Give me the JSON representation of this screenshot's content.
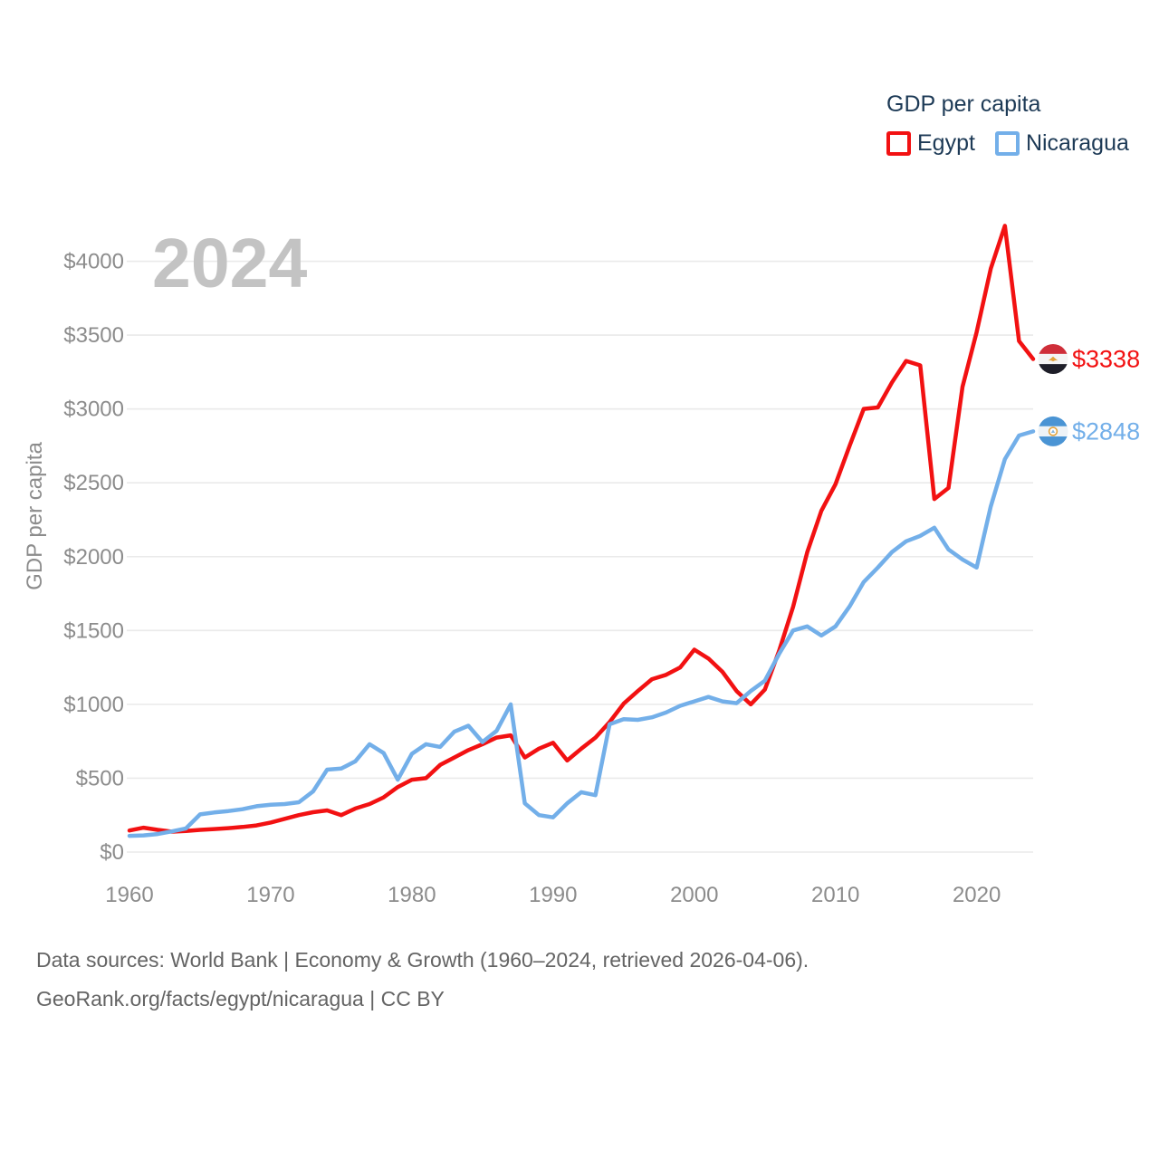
{
  "legend": {
    "title": "GDP per capita",
    "items": [
      {
        "label": "Egypt",
        "color": "#f21112"
      },
      {
        "label": "Nicaragua",
        "color": "#73afe9"
      }
    ]
  },
  "watermark": "2024",
  "axes": {
    "y_title": "GDP per capita",
    "x_tick_labels": [
      "1960",
      "1970",
      "1980",
      "1990",
      "2000",
      "2010",
      "2020"
    ],
    "y_tick_labels": [
      "$0",
      "$500",
      "$1000",
      "$1500",
      "$2000",
      "$2500",
      "$3000",
      "$3500",
      "$4000"
    ]
  },
  "end_labels": [
    {
      "series": "Egypt",
      "value": "$3338",
      "color": "#f21112",
      "flag": "egypt-flag-icon"
    },
    {
      "series": "Nicaragua",
      "value": "$2848",
      "color": "#73afe9",
      "flag": "nicaragua-flag-icon"
    }
  ],
  "flags": {
    "egypt": {
      "top": "#cf2e39",
      "middle": "#f4f4f4",
      "bottom": "#1e1e28",
      "emblem": "#e2a23b"
    },
    "nicaragua": {
      "top": "#4a94d4",
      "middle": "#eef3f7",
      "bottom": "#4a94d4",
      "emblem_ring": "#e3a33c",
      "emblem_fill": "#ffffff",
      "emblem_inner": "#8bb8dd"
    }
  },
  "footer": {
    "line1": "Data sources: World Bank | Economy & Growth (1960–2024, retrieved 2026-04-06).",
    "line2": "GeoRank.org/facts/egypt/nicaragua | CC BY"
  },
  "colors": {
    "egypt_line": "#f21112",
    "nicaragua_line": "#73afe9",
    "grid": "#eaeaea",
    "tick_text": "#8c8c8c",
    "watermark": "#c3c3c3",
    "legend_text": "#1d3a56",
    "footer_text": "#646464"
  },
  "chart_data": {
    "type": "line",
    "title": "GDP per capita",
    "x_start": 1960,
    "x_end": 2024,
    "series": [
      {
        "name": "Egypt",
        "color": "#f21112",
        "values": [
          146,
          165,
          150,
          138,
          143,
          150,
          156,
          162,
          170,
          180,
          200,
          225,
          250,
          270,
          282,
          250,
          295,
          325,
          370,
          440,
          490,
          500,
          590,
          640,
          690,
          730,
          775,
          790,
          640,
          700,
          740,
          620,
          700,
          775,
          880,
          1005,
          1090,
          1170,
          1200,
          1250,
          1370,
          1310,
          1220,
          1090,
          1000,
          1100,
          1360,
          1660,
          2030,
          2310,
          2490,
          2750,
          3000,
          3010,
          3180,
          3325,
          3295,
          2390,
          2465,
          3150,
          3520,
          3950,
          4240,
          3460,
          3338
        ]
      },
      {
        "name": "Nicaragua",
        "color": "#73afe9",
        "values": [
          110,
          113,
          122,
          140,
          160,
          255,
          268,
          278,
          290,
          310,
          320,
          325,
          337,
          410,
          558,
          565,
          615,
          730,
          670,
          490,
          665,
          730,
          712,
          815,
          855,
          745,
          820,
          1000,
          330,
          250,
          235,
          330,
          405,
          385,
          865,
          900,
          895,
          912,
          945,
          990,
          1020,
          1050,
          1020,
          1008,
          1090,
          1160,
          1340,
          1500,
          1528,
          1466,
          1528,
          1663,
          1828,
          1926,
          2031,
          2104,
          2141,
          2196,
          2049,
          1981,
          1926,
          2340,
          2660,
          2820,
          2848
        ]
      }
    ],
    "xlabel": "",
    "ylabel": "GDP per capita",
    "xlim": [
      1960,
      2024
    ],
    "ylim": [
      0,
      4300
    ],
    "y_tick_step": 500,
    "x_tick_step": 10,
    "grid": true,
    "legend_position": "top-right",
    "end_values": {
      "Egypt": 3338,
      "Nicaragua": 2848
    }
  }
}
